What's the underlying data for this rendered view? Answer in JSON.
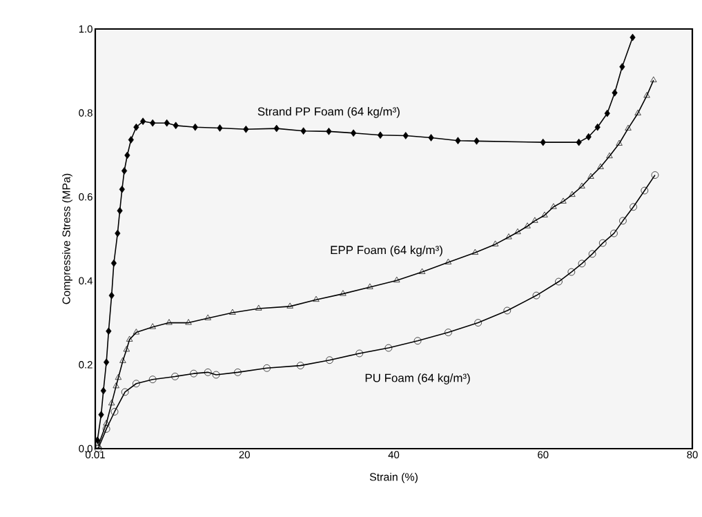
{
  "chart_data": {
    "type": "line",
    "xlabel": "Strain (%)",
    "ylabel": "Compressive Stress (MPa)",
    "xlim": [
      0.01,
      80
    ],
    "ylim": [
      0,
      1
    ],
    "xticks": [
      {
        "value": 0.01,
        "label": "0.01"
      },
      20,
      40,
      60,
      80
    ],
    "yticks": [
      {
        "value": 0,
        "label": "0.0"
      },
      0.2,
      0.4,
      0.6,
      0.8,
      {
        "value": 1,
        "label": "1.0"
      }
    ],
    "grid": false,
    "legend": false,
    "line_style": "solid",
    "series": [
      {
        "name": "Strand PP Foam (64 kg/m³)",
        "color": "#000000",
        "marker": "diamond",
        "x": [
          0.3,
          0.8,
          1.1,
          1.5,
          1.8,
          2.2,
          2.5,
          3.0,
          3.3,
          3.6,
          3.9,
          4.3,
          4.8,
          5.5,
          6.4,
          7.7,
          9.6,
          10.8,
          13.4,
          16.7,
          20.2,
          24.3,
          27.9,
          31.3,
          34.6,
          38.2,
          41.6,
          45.0,
          48.6,
          51.1,
          60.0,
          64.8,
          66.1,
          67.3,
          68.6,
          69.6,
          70.6,
          72.0
        ],
        "values": [
          0.02,
          0.081,
          0.138,
          0.206,
          0.28,
          0.365,
          0.442,
          0.513,
          0.567,
          0.618,
          0.662,
          0.699,
          0.736,
          0.766,
          0.78,
          0.776,
          0.776,
          0.77,
          0.766,
          0.764,
          0.761,
          0.763,
          0.757,
          0.756,
          0.752,
          0.747,
          0.746,
          0.741,
          0.734,
          0.733,
          0.73,
          0.73,
          0.743,
          0.766,
          0.799,
          0.848,
          0.91,
          0.98
        ]
      },
      {
        "name": "EPP Foam (64 kg/m³)",
        "color": "#000000",
        "marker": "triangle",
        "x": [
          0.4,
          1.5,
          2.2,
          2.8,
          3.1,
          3.7,
          4.2,
          4.6,
          5.5,
          7.7,
          9.9,
          12.5,
          15.1,
          18.4,
          21.9,
          26.1,
          29.6,
          33.2,
          36.8,
          40.4,
          43.8,
          47.3,
          50.9,
          53.6,
          55.4,
          56.6,
          57.9,
          58.9,
          60.2,
          61.4,
          62.7,
          63.9,
          65.2,
          66.4,
          67.7,
          68.9,
          70.2,
          71.4,
          72.7,
          73.9,
          74.8
        ],
        "values": [
          0.007,
          0.06,
          0.108,
          0.149,
          0.169,
          0.209,
          0.236,
          0.26,
          0.277,
          0.29,
          0.3,
          0.3,
          0.311,
          0.324,
          0.334,
          0.339,
          0.355,
          0.369,
          0.385,
          0.401,
          0.421,
          0.444,
          0.467,
          0.487,
          0.504,
          0.516,
          0.53,
          0.543,
          0.556,
          0.576,
          0.589,
          0.605,
          0.625,
          0.648,
          0.671,
          0.697,
          0.727,
          0.763,
          0.799,
          0.841,
          0.878
        ]
      },
      {
        "name": "PU Foam (64 kg/m³)",
        "color": "#000000",
        "marker": "circle",
        "x": [
          0.4,
          1.5,
          2.6,
          4.0,
          5.5,
          7.7,
          10.7,
          13.2,
          15.1,
          16.2,
          19.1,
          23.0,
          27.5,
          31.4,
          35.4,
          39.3,
          43.2,
          47.3,
          51.3,
          55.2,
          59.1,
          62.1,
          63.8,
          65.2,
          66.6,
          68.0,
          69.5,
          70.7,
          72.1,
          73.6,
          75.0
        ],
        "values": [
          0.0,
          0.047,
          0.088,
          0.135,
          0.155,
          0.165,
          0.172,
          0.179,
          0.182,
          0.176,
          0.182,
          0.192,
          0.198,
          0.211,
          0.227,
          0.24,
          0.257,
          0.277,
          0.3,
          0.329,
          0.365,
          0.398,
          0.421,
          0.441,
          0.464,
          0.49,
          0.513,
          0.543,
          0.576,
          0.615,
          0.652
        ]
      }
    ]
  }
}
